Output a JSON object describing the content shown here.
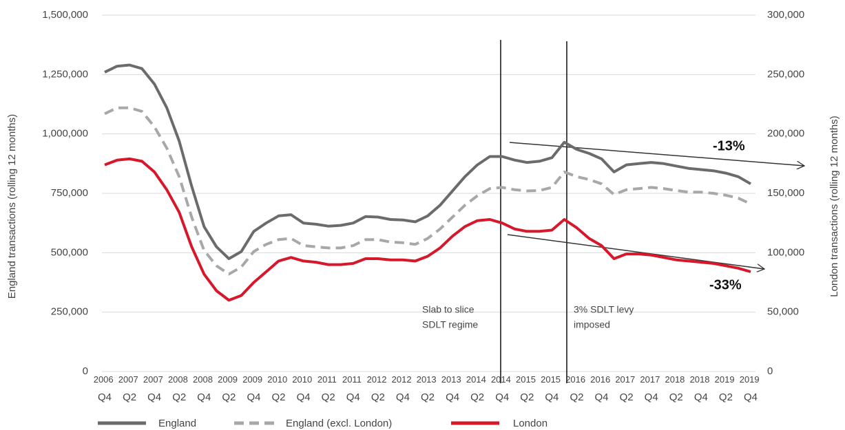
{
  "chart_data": {
    "type": "line",
    "y_label": "England transactions (rolling 12 months)",
    "y2_label": "London transactions (rolling 12 months)",
    "categories": [
      "2006 Q4",
      null,
      "2007 Q2",
      null,
      "2007 Q4",
      null,
      "2008 Q2",
      null,
      "2008 Q4",
      null,
      "2009 Q2",
      null,
      "2009 Q4",
      null,
      "2010 Q2",
      null,
      "2010 Q4",
      null,
      "2011 Q2",
      null,
      "2011 Q4",
      null,
      "2012 Q2",
      null,
      "2012 Q4",
      null,
      "2013 Q2",
      null,
      "2013 Q4",
      null,
      "2014 Q2",
      null,
      "2014 Q4",
      null,
      "2015 Q2",
      null,
      "2015 Q4",
      null,
      "2016 Q2",
      null,
      "2016 Q4",
      null,
      "2017 Q2",
      null,
      "2017 Q4",
      null,
      "2018 Q2",
      null,
      "2018 Q4",
      null,
      "2019 Q2",
      null,
      "2019 Q4"
    ],
    "ylim": [
      0,
      1500000
    ],
    "yticks": [
      0,
      {
        "value": 250000,
        "label": "250,000"
      },
      {
        "value": 500000,
        "label": "500,000"
      },
      {
        "value": 750000,
        "label": "750,000"
      },
      {
        "value": 1000000,
        "label": "1,000,000"
      },
      {
        "value": 1250000,
        "label": "1,250,000"
      },
      {
        "value": 1500000,
        "label": "1,500,000"
      }
    ],
    "y2lim": [
      0,
      300000
    ],
    "y2ticks": [
      0,
      {
        "value": 50000,
        "label": "50,000"
      },
      {
        "value": 100000,
        "label": "100,000"
      },
      {
        "value": 150000,
        "label": "150,000"
      },
      {
        "value": 200000,
        "label": "200,000"
      },
      {
        "value": 250000,
        "label": "250,000"
      },
      {
        "value": 300000,
        "label": "300,000"
      }
    ],
    "grid": true,
    "legend": "bottom",
    "series": [
      {
        "name": "England",
        "color": "#6b6b6b",
        "style": "solid",
        "values": [
          1260000,
          1285000,
          1290000,
          1275000,
          1210000,
          1110000,
          970000,
          780000,
          610000,
          525000,
          475000,
          505000,
          590000,
          625000,
          655000,
          660000,
          625000,
          620000,
          612000,
          615000,
          625000,
          652000,
          650000,
          640000,
          638000,
          630000,
          655000,
          700000,
          760000,
          820000,
          870000,
          905000,
          905000,
          890000,
          880000,
          885000,
          900000,
          965000,
          935000,
          918000,
          895000,
          840000,
          870000,
          875000,
          880000,
          875000,
          865000,
          855000,
          850000,
          845000,
          835000,
          820000,
          790000
        ]
      },
      {
        "name": "England (excl. London)",
        "color": "#a8a8a8",
        "style": "dashed",
        "values": [
          1085000,
          1110000,
          1110000,
          1095000,
          1030000,
          940000,
          820000,
          650000,
          510000,
          445000,
          410000,
          440000,
          505000,
          535000,
          555000,
          560000,
          530000,
          525000,
          520000,
          520000,
          530000,
          555000,
          555000,
          545000,
          542000,
          535000,
          560000,
          600000,
          650000,
          700000,
          740000,
          770000,
          775000,
          765000,
          760000,
          762000,
          775000,
          840000,
          820000,
          808000,
          790000,
          745000,
          765000,
          770000,
          775000,
          770000,
          762000,
          755000,
          755000,
          750000,
          742000,
          730000,
          705000
        ]
      },
      {
        "name": "London",
        "color": "#d7182a",
        "style": "solid",
        "axis": "y2",
        "values": [
          174000,
          178000,
          179000,
          177000,
          168000,
          153000,
          134000,
          105000,
          82000,
          68000,
          60000,
          64000,
          75000,
          84000,
          93000,
          96000,
          93000,
          92000,
          90000,
          90000,
          91000,
          95000,
          95000,
          94000,
          94000,
          93000,
          97000,
          104000,
          114000,
          122000,
          127000,
          128000,
          125000,
          120000,
          118000,
          118000,
          119000,
          128000,
          121000,
          112000,
          106000,
          95000,
          99000,
          99000,
          98000,
          96000,
          94000,
          93000,
          92000,
          91000,
          89000,
          87000,
          84000
        ]
      }
    ],
    "annotations": [
      {
        "lines": [
          "Slab to slice",
          "SDLT regime"
        ]
      },
      {
        "lines": [
          "3% SDLT levy",
          "imposed"
        ]
      }
    ],
    "trend_labels": [
      "-13%",
      "-33%"
    ]
  }
}
